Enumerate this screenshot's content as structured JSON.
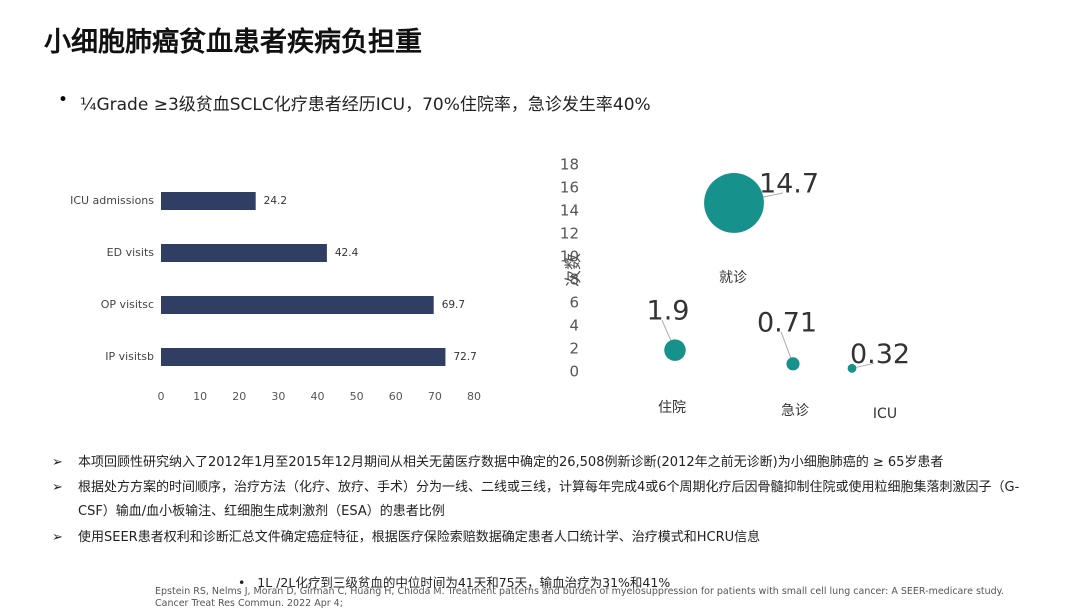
{
  "title": "小细胞肺癌贫血患者疾病负担重",
  "bullet": "¼Grade ≥3级贫血SCLC化疗患者经历ICU，70%住院率，急诊发生率40%",
  "chart_data": [
    {
      "type": "bar",
      "orientation": "horizontal",
      "categories": [
        "ICU admissions",
        "ED visits",
        "OP visitsc",
        "IP visitsb"
      ],
      "values": [
        24.2,
        42.4,
        69.7,
        72.7
      ],
      "color": "#2f3e62",
      "xlim": [
        0,
        80
      ],
      "xticks": [
        0,
        10,
        20,
        30,
        40,
        50,
        60,
        70,
        80
      ],
      "grid": false
    },
    {
      "type": "bubble",
      "y_label": "次数",
      "categories": [
        "住院",
        "就诊",
        "急诊",
        "ICU"
      ],
      "values": [
        1.9,
        14.7,
        0.71,
        0.32
      ],
      "color": "#16918b",
      "ylim": [
        0,
        18
      ],
      "yticks": [
        0,
        2,
        4,
        6,
        8,
        10,
        12,
        14,
        16,
        18
      ],
      "grid": false
    }
  ],
  "notes": [
    "本项回顾性研究纳入了2012年1月至2015年12月期间从相关无菌医疗数据中确定的26,508例新诊断(2012年之前无诊断)为小细胞肺癌的 ≥ 65岁患者",
    "根据处方方案的时间顺序，治疗方法（化疗、放疗、手术）分为一线、二线或三线，计算每年完成4或6个周期化疗后因骨髓抑制住院或使用粒细胞集落刺激因子（G-CSF）输血/血小板输注、红细胞生成刺激剂（ESA）的患者比例",
    "使用SEER患者权利和诊断汇总文件确定癌症特征，根据医疗保险索赔数据确定患者人口统计学、治疗模式和HCRU信息"
  ],
  "sub_bullet": "1L /2L化疗到三级贫血的中位时间为41天和75天，输血治疗为31%和41%",
  "reference": "Epstein RS, Nelms J, Moran D, Girman C, Huang H, Chioda M. Treatment patterns and burden of myelosuppression for patients with small cell lung cancer: A SEER-medicare study. Cancer Treat Res Commun. 2022 Apr 4;"
}
